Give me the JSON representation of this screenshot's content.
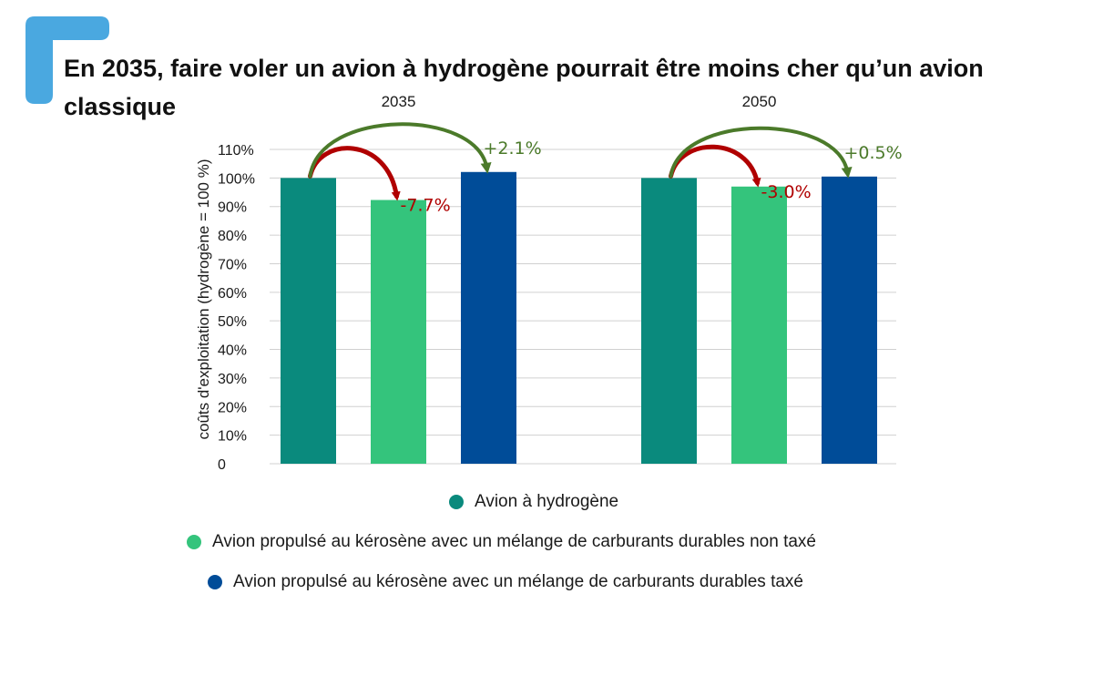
{
  "title": "En 2035, faire voler un avion à hydrogène pourrait être moins cher qu’un avion classique",
  "colors": {
    "brand": "#4aa8e0",
    "hydrogen": "#0a8a7d",
    "kerosene_untaxed": "#34c47c",
    "kerosene_taxed": "#004c98",
    "negative_arrow": "#b00000",
    "positive_arrow": "#4b7a2a",
    "grid": "#d0d0d0"
  },
  "chart_data": {
    "type": "bar",
    "categories": [
      "2035",
      "2050"
    ],
    "ylabel": "coûts d'exploitation (hydrogène = 100 %)",
    "ylim": [
      0,
      110
    ],
    "y_ticks": [
      "0",
      "10%",
      "20%",
      "30%",
      "40%",
      "50%",
      "60%",
      "70%",
      "80%",
      "90%",
      "100%",
      "110%"
    ],
    "grid": true,
    "legend_position": "bottom",
    "series": [
      {
        "name": "Avion à hydrogène",
        "values": [
          100,
          100
        ],
        "color": "#0a8a7d"
      },
      {
        "name": "Avion propulsé au kérosène avec un mélange de carburants durables non taxé",
        "values": [
          92.3,
          97.0
        ],
        "color": "#34c47c"
      },
      {
        "name": "Avion propulsé au kérosène avec un mélange de carburants durables taxé",
        "values": [
          102.1,
          100.5
        ],
        "color": "#004c98"
      }
    ],
    "annotations": [
      {
        "category": "2035",
        "from_series": 0,
        "to_series": 1,
        "label": "-7.7%",
        "sign": "negative"
      },
      {
        "category": "2035",
        "from_series": 0,
        "to_series": 2,
        "label": "+2.1%",
        "sign": "positive"
      },
      {
        "category": "2050",
        "from_series": 0,
        "to_series": 1,
        "label": "-3.0%",
        "sign": "negative"
      },
      {
        "category": "2050",
        "from_series": 0,
        "to_series": 2,
        "label": "+0.5%",
        "sign": "positive"
      }
    ]
  }
}
